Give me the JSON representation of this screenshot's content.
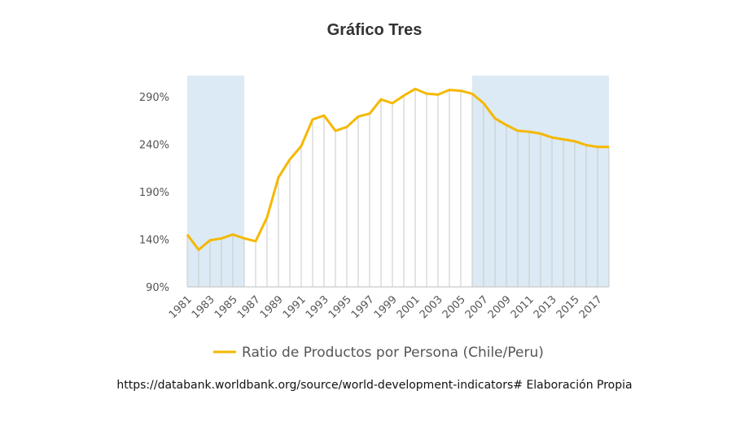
{
  "chart_data": {
    "type": "line",
    "title": "Gráfico Tres",
    "xlabel": "",
    "ylabel": "",
    "x": [
      1981,
      1982,
      1983,
      1984,
      1985,
      1986,
      1987,
      1988,
      1989,
      1990,
      1991,
      1992,
      1993,
      1994,
      1995,
      1996,
      1997,
      1998,
      1999,
      2000,
      2001,
      2002,
      2003,
      2004,
      2005,
      2006,
      2007,
      2008,
      2009,
      2010,
      2011,
      2012,
      2013,
      2014,
      2015,
      2016,
      2017,
      2018
    ],
    "x_tick_labels": [
      "1981",
      "1983",
      "1985",
      "1987",
      "1989",
      "1991",
      "1993",
      "1995",
      "1997",
      "1999",
      "2001",
      "2003",
      "2005",
      "2007",
      "2009",
      "2011",
      "2013",
      "2015",
      "2017"
    ],
    "series": [
      {
        "name": "Ratio de Productos por Persona (Chile/Peru)",
        "color": "#F5B800",
        "values": [
          145,
          129,
          139,
          141,
          145,
          141,
          138,
          163,
          205,
          224,
          238,
          266,
          270,
          254,
          258,
          269,
          272,
          287,
          283,
          291,
          298,
          293,
          292,
          297,
          296,
          293,
          283,
          267,
          260,
          254,
          253,
          251,
          247,
          245,
          243,
          239,
          237,
          237
        ]
      }
    ],
    "y_tick_labels": [
      "290%",
      "240%",
      "190%",
      "140%",
      "90%"
    ],
    "y_ticks": [
      290,
      240,
      190,
      140,
      90
    ],
    "ylim": [
      90,
      312
    ],
    "shaded_ranges": [
      [
        1981,
        1986
      ],
      [
        2006,
        2018
      ]
    ],
    "shade_color": "#DCEAF5",
    "grid": false,
    "legend_position": "bottom",
    "source_note": "https://databank.worldbank.org/source/world-development-indicators# Elaboración Propia"
  }
}
